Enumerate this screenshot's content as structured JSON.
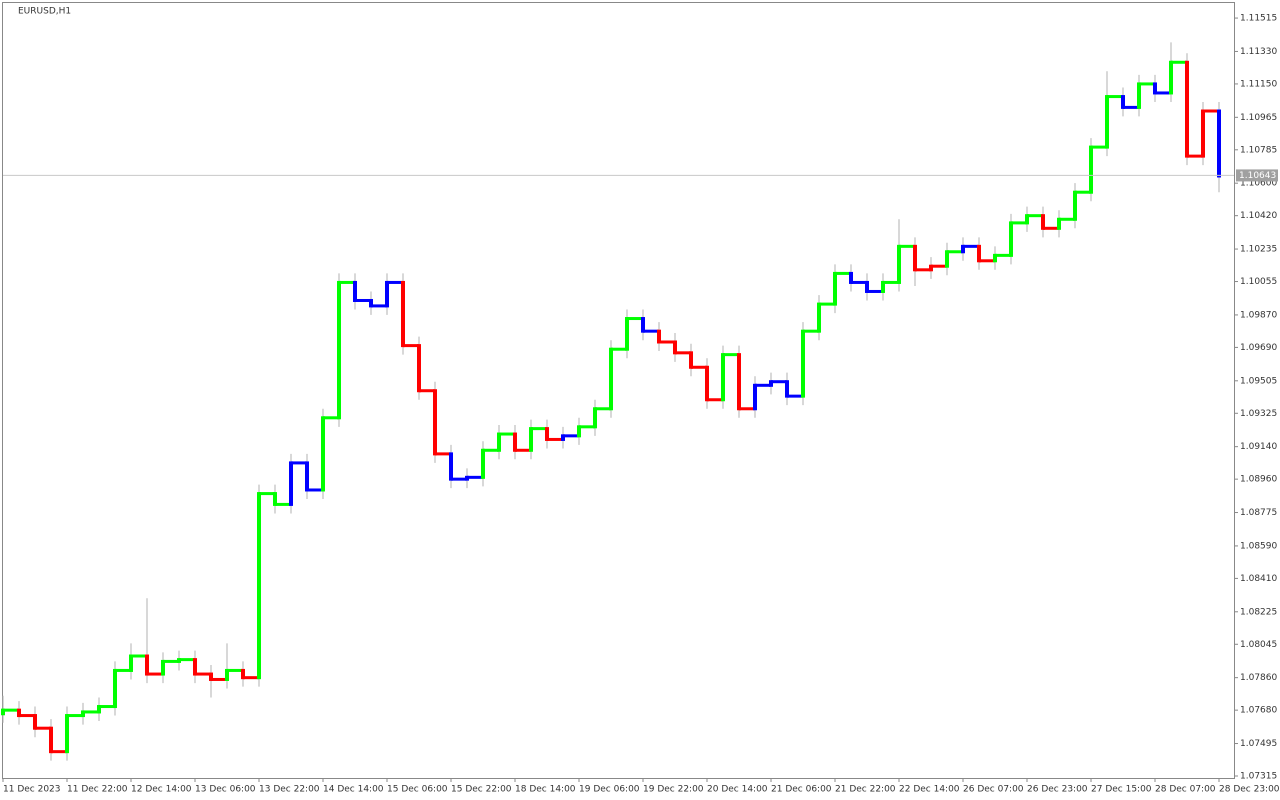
{
  "chart_data": {
    "type": "ohlc",
    "title": "EURUSD,H1",
    "ylim": [
      1.07304,
      1.11604
    ],
    "yticks": [
      {
        "value": 1.11515,
        "label": "1.11515"
      },
      {
        "value": 1.1133,
        "label": "1.11330"
      },
      {
        "value": 1.1115,
        "label": "1.11150"
      },
      {
        "value": 1.10965,
        "label": "1.10965"
      },
      {
        "value": 1.10785,
        "label": "1.10785"
      },
      {
        "value": 1.106,
        "label": "1.10600"
      },
      {
        "value": 1.1042,
        "label": "1.10420"
      },
      {
        "value": 1.10235,
        "label": "1.10235"
      },
      {
        "value": 1.10055,
        "label": "1.10055"
      },
      {
        "value": 1.0987,
        "label": "1.09870"
      },
      {
        "value": 1.0969,
        "label": "1.09690"
      },
      {
        "value": 1.09505,
        "label": "1.09505"
      },
      {
        "value": 1.09325,
        "label": "1.09325"
      },
      {
        "value": 1.0914,
        "label": "1.09140"
      },
      {
        "value": 1.0896,
        "label": "1.08960"
      },
      {
        "value": 1.08775,
        "label": "1.08775"
      },
      {
        "value": 1.0859,
        "label": "1.08590"
      },
      {
        "value": 1.0841,
        "label": "1.08410"
      },
      {
        "value": 1.08225,
        "label": "1.08225"
      },
      {
        "value": 1.08045,
        "label": "1.08045"
      },
      {
        "value": 1.0786,
        "label": "1.07860"
      },
      {
        "value": 1.0768,
        "label": "1.07680"
      },
      {
        "value": 1.07495,
        "label": "1.07495"
      },
      {
        "value": 1.07315,
        "label": "1.07315"
      }
    ],
    "xticks": [
      {
        "value": 0,
        "label": "11 Dec 2023"
      },
      {
        "value": 4,
        "label": "11 Dec 22:00"
      },
      {
        "value": 8,
        "label": "12 Dec 14:00"
      },
      {
        "value": 12,
        "label": "13 Dec 06:00"
      },
      {
        "value": 16,
        "label": "13 Dec 22:00"
      },
      {
        "value": 20,
        "label": "14 Dec 14:00"
      },
      {
        "value": 24,
        "label": "15 Dec 06:00"
      },
      {
        "value": 28,
        "label": "15 Dec 22:00"
      },
      {
        "value": 32,
        "label": "18 Dec 14:00"
      },
      {
        "value": 36,
        "label": "19 Dec 06:00"
      },
      {
        "value": 40,
        "label": "19 Dec 22:00"
      },
      {
        "value": 44,
        "label": "20 Dec 14:00"
      },
      {
        "value": 48,
        "label": "21 Dec 06:00"
      },
      {
        "value": 52,
        "label": "21 Dec 22:00"
      },
      {
        "value": 56,
        "label": "22 Dec 14:00"
      },
      {
        "value": 60,
        "label": "26 Dec 07:00"
      },
      {
        "value": 64,
        "label": "26 Dec 23:00"
      },
      {
        "value": 68,
        "label": "27 Dec 15:00"
      },
      {
        "value": 72,
        "label": "28 Dec 07:00"
      },
      {
        "value": 76,
        "label": "28 Dec 23:00"
      }
    ],
    "last_price": 1.10643,
    "ohlc": [
      [
        1.0766,
        1.0776,
        1.0761,
        1.0768
      ],
      [
        1.0768,
        1.0773,
        1.076,
        1.0765
      ],
      [
        1.0765,
        1.077,
        1.0753,
        1.0758
      ],
      [
        1.0758,
        1.0763,
        1.074,
        1.0745
      ],
      [
        1.0745,
        1.077,
        1.074,
        1.0765
      ],
      [
        1.0765,
        1.0772,
        1.076,
        1.0767
      ],
      [
        1.0767,
        1.0775,
        1.0762,
        1.077
      ],
      [
        1.077,
        1.0795,
        1.0765,
        1.079
      ],
      [
        1.079,
        1.0805,
        1.0785,
        1.0798
      ],
      [
        1.0798,
        1.083,
        1.0783,
        1.0788
      ],
      [
        1.0788,
        1.08,
        1.0783,
        1.0795
      ],
      [
        1.0795,
        1.0801,
        1.079,
        1.0796
      ],
      [
        1.0796,
        1.0801,
        1.0783,
        1.0788
      ],
      [
        1.0788,
        1.0793,
        1.0775,
        1.0785
      ],
      [
        1.0785,
        1.0805,
        1.078,
        1.079
      ],
      [
        1.079,
        1.0795,
        1.0781,
        1.0786
      ],
      [
        1.0786,
        1.0893,
        1.0781,
        1.0888
      ],
      [
        1.0888,
        1.0893,
        1.0877,
        1.0882
      ],
      [
        1.0882,
        1.091,
        1.0877,
        1.0905
      ],
      [
        1.0905,
        1.091,
        1.0885,
        1.089
      ],
      [
        1.089,
        1.0935,
        1.0885,
        1.093
      ],
      [
        1.093,
        1.101,
        1.0925,
        1.1005
      ],
      [
        1.1005,
        1.101,
        1.099,
        1.0995
      ],
      [
        1.0995,
        1.1,
        1.0987,
        1.0992
      ],
      [
        1.0992,
        1.101,
        1.0987,
        1.1005
      ],
      [
        1.1005,
        1.101,
        1.0965,
        1.097
      ],
      [
        1.097,
        1.0975,
        1.094,
        1.0945
      ],
      [
        1.0945,
        1.095,
        1.0905,
        1.091
      ],
      [
        1.091,
        1.0915,
        1.0891,
        1.0896
      ],
      [
        1.0896,
        1.0902,
        1.0891,
        1.0897
      ],
      [
        1.0897,
        1.0917,
        1.0892,
        1.0912
      ],
      [
        1.0912,
        1.0926,
        1.0907,
        1.0921
      ],
      [
        1.0921,
        1.0926,
        1.0907,
        1.0912
      ],
      [
        1.0912,
        1.0929,
        1.0907,
        1.0924
      ],
      [
        1.0924,
        1.0929,
        1.0913,
        1.0918
      ],
      [
        1.0918,
        1.0925,
        1.0913,
        1.092
      ],
      [
        1.092,
        1.093,
        1.0915,
        1.0925
      ],
      [
        1.0925,
        1.094,
        1.092,
        1.0935
      ],
      [
        1.0935,
        1.0973,
        1.093,
        1.0968
      ],
      [
        1.0968,
        1.099,
        1.0963,
        1.0985
      ],
      [
        1.0985,
        1.099,
        1.0973,
        1.0978
      ],
      [
        1.0978,
        1.0983,
        1.0967,
        1.0972
      ],
      [
        1.0972,
        1.0977,
        1.0961,
        1.0966
      ],
      [
        1.0966,
        1.0971,
        1.0953,
        1.0958
      ],
      [
        1.0958,
        1.0963,
        1.0935,
        1.094
      ],
      [
        1.094,
        1.097,
        1.0935,
        1.0965
      ],
      [
        1.0965,
        1.097,
        1.093,
        1.0935
      ],
      [
        1.0935,
        1.0953,
        1.093,
        1.0948
      ],
      [
        1.0948,
        1.0955,
        1.0943,
        1.095
      ],
      [
        1.095,
        1.0955,
        1.0937,
        1.0942
      ],
      [
        1.0942,
        1.0983,
        1.0937,
        1.0978
      ],
      [
        1.0978,
        1.0998,
        1.0973,
        1.0993
      ],
      [
        1.0993,
        1.1015,
        1.0988,
        1.101
      ],
      [
        1.101,
        1.1015,
        1.1,
        1.1005
      ],
      [
        1.1005,
        1.101,
        1.0995,
        1.1
      ],
      [
        1.1,
        1.101,
        1.0995,
        1.1005
      ],
      [
        1.1005,
        1.104,
        1.1,
        1.1025
      ],
      [
        1.1025,
        1.103,
        1.1003,
        1.1012
      ],
      [
        1.1012,
        1.1019,
        1.1007,
        1.1014
      ],
      [
        1.1014,
        1.1027,
        1.1009,
        1.1022
      ],
      [
        1.1022,
        1.103,
        1.1017,
        1.1025
      ],
      [
        1.1025,
        1.103,
        1.1012,
        1.1017
      ],
      [
        1.1017,
        1.1025,
        1.1012,
        1.102
      ],
      [
        1.102,
        1.1043,
        1.1015,
        1.1038
      ],
      [
        1.1038,
        1.1047,
        1.1033,
        1.1042
      ],
      [
        1.1042,
        1.1047,
        1.103,
        1.1035
      ],
      [
        1.1035,
        1.1045,
        1.103,
        1.104
      ],
      [
        1.104,
        1.106,
        1.1035,
        1.1055
      ],
      [
        1.1055,
        1.1085,
        1.105,
        1.108
      ],
      [
        1.108,
        1.1122,
        1.1075,
        1.1108
      ],
      [
        1.1108,
        1.1113,
        1.1097,
        1.1102
      ],
      [
        1.1102,
        1.112,
        1.1097,
        1.1115
      ],
      [
        1.1115,
        1.112,
        1.1105,
        1.111
      ],
      [
        1.111,
        1.1138,
        1.1105,
        1.1127
      ],
      [
        1.1127,
        1.1132,
        1.107,
        1.1075
      ],
      [
        1.1075,
        1.1105,
        1.107,
        1.11
      ],
      [
        1.11,
        1.1105,
        1.1055,
        1.1064
      ]
    ],
    "colors": [
      "#00ff00",
      "#ff0000",
      "#ff0000",
      "#ff0000",
      "#00ff00",
      "#00ff00",
      "#00ff00",
      "#00ff00",
      "#00ff00",
      "#ff0000",
      "#00ff00",
      "#00ff00",
      "#ff0000",
      "#ff0000",
      "#00ff00",
      "#ff0000",
      "#00ff00",
      "#00ff00",
      "#0000ff",
      "#0000ff",
      "#00ff00",
      "#00ff00",
      "#0000ff",
      "#0000ff",
      "#0000ff",
      "#ff0000",
      "#ff0000",
      "#ff0000",
      "#0000ff",
      "#0000ff",
      "#00ff00",
      "#00ff00",
      "#ff0000",
      "#00ff00",
      "#ff0000",
      "#0000ff",
      "#00ff00",
      "#00ff00",
      "#00ff00",
      "#00ff00",
      "#0000ff",
      "#ff0000",
      "#ff0000",
      "#ff0000",
      "#ff0000",
      "#00ff00",
      "#ff0000",
      "#0000ff",
      "#0000ff",
      "#0000ff",
      "#00ff00",
      "#00ff00",
      "#00ff00",
      "#0000ff",
      "#0000ff",
      "#00ff00",
      "#00ff00",
      "#ff0000",
      "#ff0000",
      "#00ff00",
      "#0000ff",
      "#ff0000",
      "#00ff00",
      "#00ff00",
      "#00ff00",
      "#ff0000",
      "#00ff00",
      "#00ff00",
      "#00ff00",
      "#00ff00",
      "#0000ff",
      "#00ff00",
      "#0000ff",
      "#00ff00",
      "#ff0000",
      "#ff0000",
      "#0000ff"
    ]
  }
}
